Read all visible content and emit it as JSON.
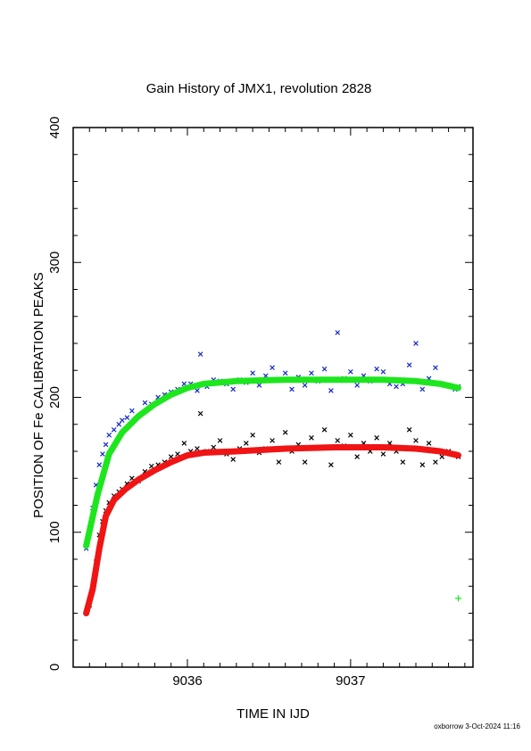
{
  "chart_data": {
    "type": "scatter",
    "title": "Gain History of JMX1, revolution 2828",
    "xlabel": "TIME IN IJD",
    "ylabel": "POSITION OF Fe CALIBRATION PEAKS",
    "xlim": [
      9035.3,
      9037.75
    ],
    "ylim": [
      0,
      400
    ],
    "x_ticks": [
      9036,
      9037
    ],
    "y_ticks": [
      0,
      100,
      200,
      300,
      400
    ],
    "grid": false,
    "colors": {
      "upper_points": "#1428c8",
      "upper_fit": "#1ee61e",
      "lower_points": "#000000",
      "lower_fit": "#f01414",
      "outlier": "#1ee61e"
    },
    "series": [
      {
        "color_key": "upper_points",
        "marker": "x",
        "x": [
          9035.38,
          9035.4,
          9035.42,
          9035.44,
          9035.46,
          9035.48,
          9035.5,
          9035.52,
          9035.55,
          9035.58,
          9035.6,
          9035.63,
          9035.66,
          9035.7,
          9035.74,
          9035.78,
          9035.82,
          9035.86,
          9035.9,
          9035.94,
          9035.98,
          9036.02,
          9036.06,
          9036.08,
          9036.12,
          9036.16,
          9036.2,
          9036.24,
          9036.28,
          9036.32,
          9036.36,
          9036.4,
          9036.44,
          9036.48,
          9036.52,
          9036.56,
          9036.6,
          9036.64,
          9036.68,
          9036.72,
          9036.76,
          9036.8,
          9036.84,
          9036.88,
          9036.92,
          9036.96,
          9037.0,
          9037.04,
          9037.08,
          9037.12,
          9037.16,
          9037.2,
          9037.24,
          9037.28,
          9037.32,
          9037.36,
          9037.4,
          9037.44,
          9037.48,
          9037.52,
          9037.56,
          9037.6,
          9037.64,
          9037.66
        ],
        "y": [
          88,
          102,
          118,
          135,
          150,
          158,
          165,
          172,
          176,
          180,
          183,
          185,
          190,
          186,
          196,
          195,
          200,
          202,
          204,
          206,
          210,
          210,
          205,
          232,
          208,
          213,
          212,
          210,
          206,
          213,
          211,
          218,
          209,
          216,
          222,
          213,
          218,
          206,
          215,
          209,
          218,
          212,
          221,
          205,
          248,
          214,
          219,
          209,
          216,
          212,
          221,
          219,
          210,
          208,
          210,
          224,
          240,
          206,
          214,
          222,
          210,
          209,
          206,
          208
        ]
      },
      {
        "color_key": "lower_points",
        "marker": "x",
        "x": [
          9035.38,
          9035.4,
          9035.42,
          9035.44,
          9035.46,
          9035.48,
          9035.5,
          9035.52,
          9035.55,
          9035.58,
          9035.6,
          9035.63,
          9035.66,
          9035.7,
          9035.74,
          9035.78,
          9035.82,
          9035.86,
          9035.9,
          9035.94,
          9035.98,
          9036.02,
          9036.06,
          9036.08,
          9036.12,
          9036.16,
          9036.2,
          9036.24,
          9036.28,
          9036.32,
          9036.36,
          9036.4,
          9036.44,
          9036.48,
          9036.52,
          9036.56,
          9036.6,
          9036.64,
          9036.68,
          9036.72,
          9036.76,
          9036.8,
          9036.84,
          9036.88,
          9036.92,
          9036.96,
          9037.0,
          9037.04,
          9037.08,
          9037.12,
          9037.16,
          9037.2,
          9037.24,
          9037.28,
          9037.32,
          9037.36,
          9037.4,
          9037.44,
          9037.48,
          9037.52,
          9037.56,
          9037.6,
          9037.64,
          9037.66
        ],
        "y": [
          40,
          46,
          58,
          78,
          98,
          108,
          116,
          122,
          127,
          130,
          132,
          136,
          140,
          138,
          145,
          149,
          150,
          152,
          156,
          158,
          166,
          160,
          162,
          188,
          160,
          163,
          168,
          158,
          154,
          162,
          166,
          172,
          159,
          162,
          168,
          152,
          174,
          160,
          165,
          152,
          170,
          162,
          176,
          150,
          168,
          164,
          172,
          156,
          166,
          160,
          170,
          158,
          166,
          160,
          152,
          176,
          168,
          150,
          166,
          152,
          156,
          160,
          158,
          156
        ]
      },
      {
        "color_key": "upper_fit",
        "marker": "line",
        "x": [
          9035.38,
          9035.45,
          9035.52,
          9035.6,
          9035.7,
          9035.8,
          9035.9,
          9036.0,
          9036.1,
          9036.3,
          9036.6,
          9036.9,
          9037.2,
          9037.4,
          9037.55,
          9037.66
        ],
        "y": [
          90,
          128,
          158,
          174,
          186,
          195,
          202,
          207,
          210,
          212,
          213,
          213,
          213,
          212,
          210,
          207
        ]
      },
      {
        "color_key": "lower_fit",
        "marker": "line",
        "x": [
          9035.38,
          9035.42,
          9035.46,
          9035.5,
          9035.55,
          9035.62,
          9035.7,
          9035.8,
          9035.9,
          9036.0,
          9036.1,
          9036.3,
          9036.6,
          9036.9,
          9037.2,
          9037.4,
          9037.55,
          9037.66
        ],
        "y": [
          40,
          58,
          88,
          112,
          124,
          132,
          139,
          146,
          152,
          157,
          159,
          160,
          162,
          163,
          163,
          162,
          160,
          157
        ]
      },
      {
        "color_key": "outlier",
        "marker": "+",
        "x": [
          9037.66
        ],
        "y": [
          51
        ]
      }
    ]
  },
  "footer": "oxborrow  3-Oct-2024 11:16"
}
